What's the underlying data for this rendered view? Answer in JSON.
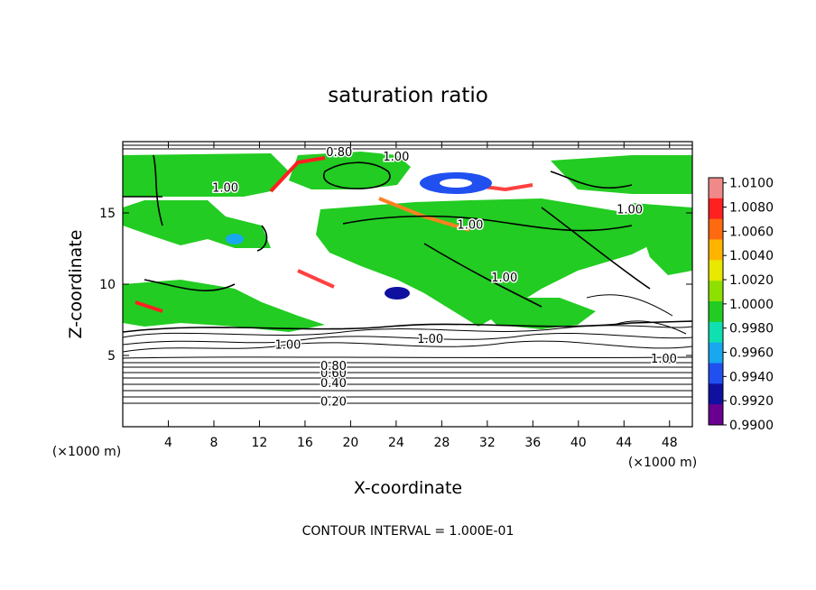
{
  "chart_data": {
    "type": "heatmap",
    "title": "saturation ratio",
    "xlabel": "X-coordinate",
    "ylabel": "Z-coordinate",
    "x_unit": "(×1000 m)",
    "xlim": [
      0,
      50
    ],
    "ylim": [
      0,
      20
    ],
    "xticks": [
      "4",
      "8",
      "12",
      "16",
      "20",
      "24",
      "28",
      "32",
      "36",
      "40",
      "44",
      "48"
    ],
    "yticks": [
      "5",
      "10",
      "15"
    ],
    "footer": "CONTOUR INTERVAL = 1.000E-01",
    "colorbar": {
      "levels": [
        "1.0100",
        "1.0080",
        "1.0060",
        "1.0040",
        "1.0020",
        "1.0000",
        "0.9980",
        "0.9960",
        "0.9940",
        "0.9920",
        "0.9900"
      ],
      "colors": [
        "#f08a8a",
        "#ff2020",
        "#ff6a10",
        "#ffb400",
        "#e8e800",
        "#8ee000",
        "#22cc22",
        "#10e0b0",
        "#18a8f0",
        "#2050f0",
        "#1010a0",
        "#6a0090"
      ]
    },
    "contour_labels": [
      {
        "text": "0.20",
        "x": 18.5,
        "y": 1.8
      },
      {
        "text": "0.40",
        "x": 18.5,
        "y": 3.1
      },
      {
        "text": "0.60",
        "x": 18.5,
        "y": 3.8
      },
      {
        "text": "0.80",
        "x": 18.5,
        "y": 4.3
      },
      {
        "text": "1.00",
        "x": 14.5,
        "y": 5.8
      },
      {
        "text": "1.00",
        "x": 27.0,
        "y": 6.2
      },
      {
        "text": "1.00",
        "x": 47.5,
        "y": 4.8
      },
      {
        "text": "1.00",
        "x": 9.0,
        "y": 16.8
      },
      {
        "text": "0.80",
        "x": 19.0,
        "y": 19.3
      },
      {
        "text": "1.00",
        "x": 24.0,
        "y": 19.0
      },
      {
        "text": "1.00",
        "x": 30.5,
        "y": 14.2
      },
      {
        "text": "1.00",
        "x": 33.5,
        "y": 10.5
      },
      {
        "text": "1.00",
        "x": 44.5,
        "y": 15.3
      }
    ]
  }
}
